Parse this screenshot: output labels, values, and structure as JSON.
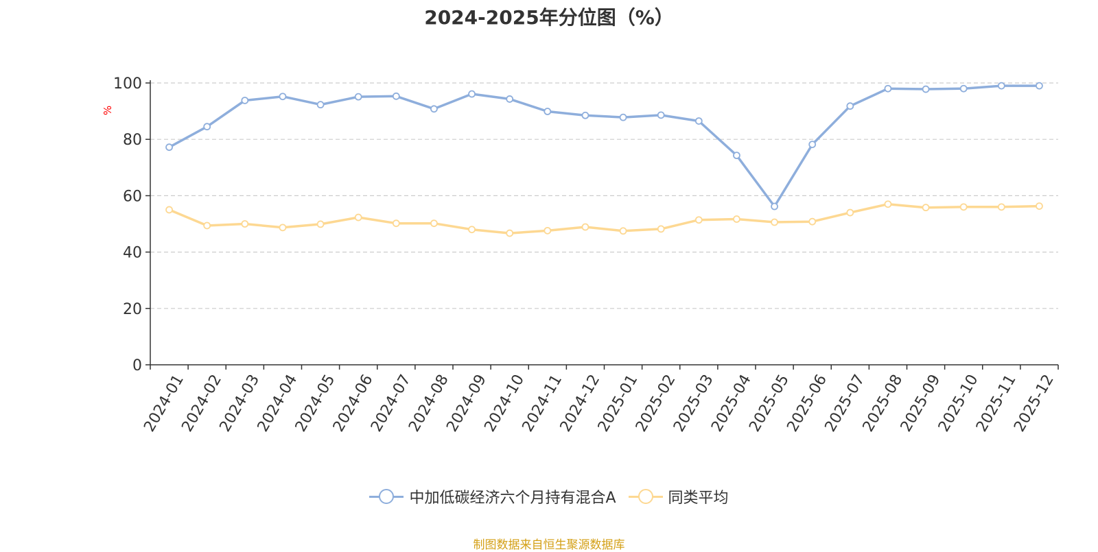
{
  "title": "2024-2025年分位图（%）",
  "source_note": "制图数据来自恒生聚源数据库",
  "colors": {
    "fund": "#8eaedc",
    "avg": "#fdd892",
    "axis": "#333333",
    "grid": "#cccccc",
    "ylabel": "#ff0000",
    "source": "#d4a017"
  },
  "legend": [
    {
      "label": "中加低碳经济六个月持有混合A",
      "color": "#8eaedc"
    },
    {
      "label": "同类平均",
      "color": "#fdd892"
    }
  ],
  "chart_data": {
    "type": "line",
    "title": "2024-2025年分位图（%）",
    "xlabel": "",
    "ylabel": "%",
    "ylim": [
      0,
      100
    ],
    "yticks": [
      0,
      20,
      40,
      60,
      80,
      100
    ],
    "grid": true,
    "legend_position": "bottom",
    "categories": [
      "2024-01",
      "2024-02",
      "2024-03",
      "2024-04",
      "2024-05",
      "2024-06",
      "2024-07",
      "2024-08",
      "2024-09",
      "2024-10",
      "2024-11",
      "2024-12",
      "2025-01",
      "2025-02",
      "2025-03",
      "2025-04",
      "2025-05",
      "2025-06",
      "2025-07",
      "2025-08",
      "2025-09",
      "2025-10",
      "2025-11",
      "2025-12"
    ],
    "series": [
      {
        "name": "中加低碳经济六个月持有混合A",
        "values": [
          77.2,
          84.5,
          93.8,
          95.2,
          92.3,
          95.1,
          95.3,
          90.8,
          96.1,
          94.3,
          89.9,
          88.5,
          87.8,
          88.6,
          86.5,
          74.3,
          56.2,
          78.2,
          91.8,
          98.0,
          97.8,
          98.0,
          99.0,
          99.0
        ]
      },
      {
        "name": "同类平均",
        "values": [
          55.0,
          49.4,
          50.0,
          48.7,
          49.9,
          52.3,
          50.2,
          50.2,
          48.0,
          46.7,
          47.6,
          48.9,
          47.5,
          48.2,
          51.4,
          51.7,
          50.6,
          50.8,
          54.0,
          57.0,
          55.8,
          56.0,
          56.0,
          56.3
        ]
      }
    ]
  }
}
